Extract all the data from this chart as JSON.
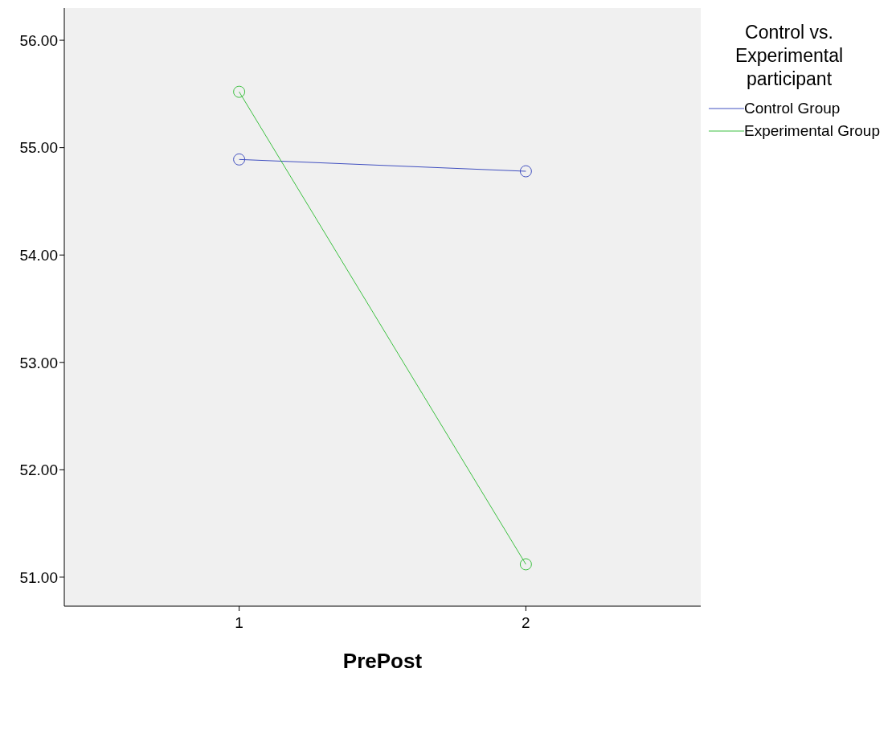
{
  "chart_data": {
    "type": "line",
    "xlabel": "PrePost",
    "legend_title": "Control vs. Experimental participant",
    "x": [
      1,
      2
    ],
    "series": [
      {
        "name": "Control Group",
        "color": "#4150c0",
        "values": [
          54.89,
          54.78
        ]
      },
      {
        "name": "Experimental Group",
        "color": "#3cc040",
        "values": [
          55.52,
          51.12
        ]
      }
    ],
    "xlim": [
      0.39,
      2.61
    ],
    "xticks": [
      1,
      2
    ],
    "ylim": [
      50.73,
      56.3
    ],
    "yticks": [
      {
        "value": 51,
        "label": "51.00"
      },
      {
        "value": 52,
        "label": "52.00"
      },
      {
        "value": 53,
        "label": "53.00"
      },
      {
        "value": 54,
        "label": "54.00"
      },
      {
        "value": 55,
        "label": "55.00"
      },
      {
        "value": 56,
        "label": "56.00"
      }
    ],
    "marker": "circle",
    "line_style": "solid",
    "legend": "top right",
    "grid": false
  }
}
